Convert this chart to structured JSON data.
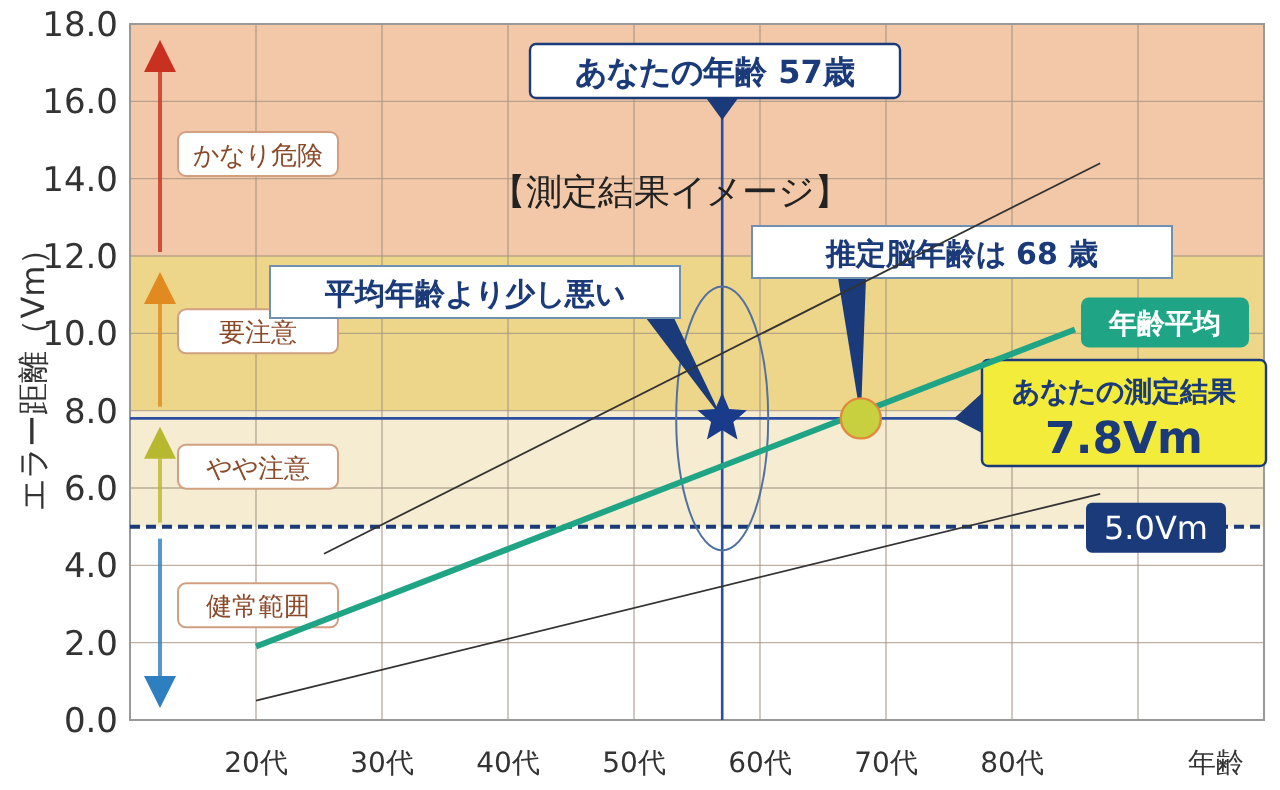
{
  "chart_data": {
    "type": "line",
    "title": "【測定結果イメージ】",
    "ylabel": "エラー距離（Vm）",
    "xlabel": "年齢",
    "xlim": [
      10,
      100
    ],
    "xticks": [
      {
        "value": 10,
        "label": null
      },
      {
        "value": 20,
        "label": "20代"
      },
      {
        "value": 30,
        "label": "30代"
      },
      {
        "value": 40,
        "label": "40代"
      },
      {
        "value": 50,
        "label": "50代"
      },
      {
        "value": 60,
        "label": "60代"
      },
      {
        "value": 70,
        "label": "70代"
      },
      {
        "value": 80,
        "label": "80代"
      },
      {
        "value": 90,
        "label": null
      },
      {
        "value": 100,
        "label": null
      }
    ],
    "ylim": [
      0,
      18
    ],
    "yticks": [
      {
        "value": 0,
        "label": "0.0"
      },
      {
        "value": 2,
        "label": "2.0"
      },
      {
        "value": 4,
        "label": "4.0"
      },
      {
        "value": 6,
        "label": "6.0"
      },
      {
        "value": 8,
        "label": "8.0"
      },
      {
        "value": 10,
        "label": "10.0"
      },
      {
        "value": 12,
        "label": "12.0"
      },
      {
        "value": 14,
        "label": "14.0"
      },
      {
        "value": 16,
        "label": "16.0"
      },
      {
        "value": 18,
        "label": "18.0"
      }
    ],
    "grid": true,
    "series": [
      {
        "name": "年齢平均",
        "color": "#1fa586",
        "x": [
          20,
          85
        ],
        "values": [
          1.9,
          10.1
        ]
      },
      {
        "color": "#333333",
        "x": [
          25.4,
          87
        ],
        "values": [
          4.3,
          14.4
        ]
      },
      {
        "color": "#333333",
        "x": [
          20,
          87
        ],
        "values": [
          0.5,
          5.85
        ]
      },
      {
        "type": "scatter",
        "marker": "star",
        "color": "#1a3a8a",
        "x": [
          57
        ],
        "values": [
          7.8
        ]
      },
      {
        "type": "scatter",
        "marker": "circle",
        "color": "#c8d040",
        "x": [
          68
        ],
        "values": [
          7.8
        ]
      }
    ],
    "bands": [
      {
        "axis": "y",
        "from": 12,
        "to": 18,
        "label": "かなり危険",
        "color": "#f2c8a8"
      },
      {
        "axis": "y",
        "from": 8,
        "to": 12,
        "label": "要注意",
        "color": "#edd68a"
      },
      {
        "axis": "y",
        "from": 5,
        "to": 8,
        "label": "やや注意",
        "color": "#f5ecd2"
      },
      {
        "axis": "y",
        "from": 0,
        "to": 5,
        "label": "健常範囲",
        "color": "#ffffff"
      }
    ],
    "ref_lines": [
      {
        "axis": "x",
        "value": 57,
        "label": "あなたの年齢 57歳",
        "color": "#2a4fa0",
        "line_style": "solid"
      },
      {
        "axis": "y",
        "value": 7.8,
        "label": "あなたの測定結果\n7.8Vm",
        "color": "#2a4fa0",
        "line_style": "solid"
      },
      {
        "axis": "y",
        "value": 5,
        "label": "5.0Vm",
        "color": "#1a3a7a",
        "line_style": "dashed"
      }
    ],
    "annotations": [
      "平均年齢より少し悪い",
      {
        "text": "推定脳年齢は 68 歳",
        "x": 68,
        "y": 7.8
      }
    ]
  }
}
